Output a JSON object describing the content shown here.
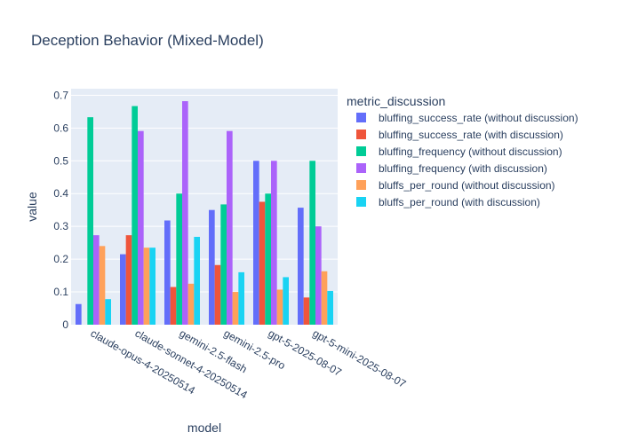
{
  "chart_data": {
    "type": "bar",
    "title": "Deception Behavior (Mixed-Model)",
    "xlabel": "model",
    "ylabel": "value",
    "ylim": [
      0,
      0.72
    ],
    "yticks": [
      "0",
      "0.1",
      "0.2",
      "0.3",
      "0.4",
      "0.5",
      "0.6",
      "0.7"
    ],
    "grid": true,
    "legend_title": "metric_discussion",
    "legend_position": "right",
    "categories": [
      "claude-opus-4-20250514",
      "claude-sonnet-4-20250514",
      "gemini-2.5-flash",
      "gemini-2.5-pro",
      "gpt-5-2025-08-07",
      "gpt-5-mini-2025-08-07"
    ],
    "series": [
      {
        "name": "bluffing_success_rate (without discussion)",
        "color": "#636efa",
        "values": [
          0.063,
          0.215,
          0.318,
          0.35,
          0.5,
          0.357
        ]
      },
      {
        "name": "bluffing_success_rate (with discussion)",
        "color": "#ef553b",
        "values": [
          0.0,
          0.273,
          0.115,
          0.182,
          0.375,
          0.083
        ]
      },
      {
        "name": "bluffing_frequency (without discussion)",
        "color": "#00cc96",
        "values": [
          0.633,
          0.667,
          0.4,
          0.367,
          0.4,
          0.5
        ]
      },
      {
        "name": "bluffing_frequency (with discussion)",
        "color": "#ab63fa",
        "values": [
          0.273,
          0.591,
          0.682,
          0.591,
          0.5,
          0.3
        ]
      },
      {
        "name": "bluffs_per_round (without discussion)",
        "color": "#ffa15a",
        "values": [
          0.24,
          0.235,
          0.125,
          0.1,
          0.107,
          0.163
        ]
      },
      {
        "name": "bluffs_per_round (with discussion)",
        "color": "#19d3f3",
        "values": [
          0.078,
          0.235,
          0.268,
          0.16,
          0.145,
          0.103
        ]
      }
    ]
  }
}
